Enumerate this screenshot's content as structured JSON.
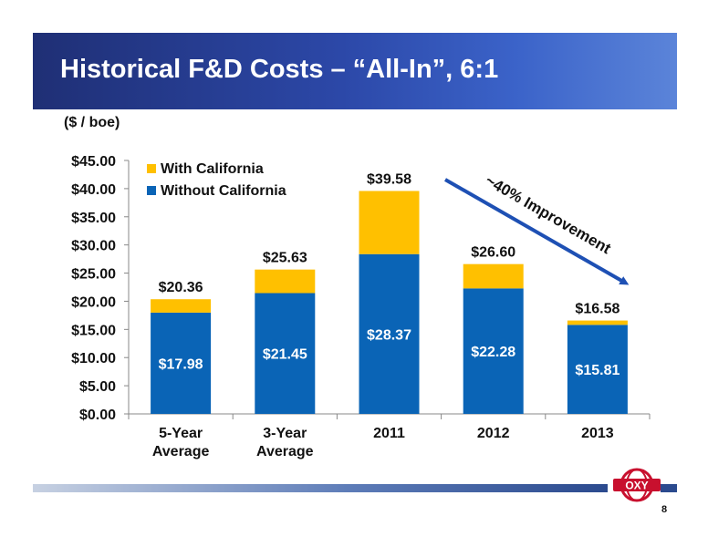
{
  "slide": {
    "title": "Historical F&D Costs – “All-In”, 6:1",
    "unit_label": "($ / boe)",
    "page_number": "8",
    "logo_text": "OXY"
  },
  "chart_data": {
    "type": "bar",
    "stacked": true,
    "categories": [
      [
        "5-Year",
        "Average"
      ],
      [
        "3-Year",
        "Average"
      ],
      [
        "2011"
      ],
      [
        "2012"
      ],
      [
        "2013"
      ]
    ],
    "series": [
      {
        "name": "Without California",
        "values": [
          17.98,
          21.45,
          28.37,
          22.28,
          15.81
        ],
        "labels": [
          "$17.98",
          "$21.45",
          "$28.37",
          "$22.28",
          "$15.81"
        ],
        "color": "#0a64b6"
      },
      {
        "name": "With California",
        "values": [
          2.38,
          4.18,
          11.21,
          4.32,
          0.77
        ],
        "color": "#ffc000"
      }
    ],
    "totals": [
      20.36,
      25.63,
      39.58,
      26.6,
      16.58
    ],
    "total_labels": [
      "$20.36",
      "$25.63",
      "$39.58",
      "$26.60",
      "$16.58"
    ],
    "ylim": [
      0,
      45
    ],
    "yticks": [
      0,
      5,
      10,
      15,
      20,
      25,
      30,
      35,
      40,
      45
    ],
    "ytick_labels": [
      "$0.00",
      "$5.00",
      "$10.00",
      "$15.00",
      "$20.00",
      "$25.00",
      "$30.00",
      "$35.00",
      "$40.00",
      "$45.00"
    ],
    "legend": {
      "placement": "top-left",
      "entries": [
        "With California",
        "Without California"
      ]
    },
    "annotation": {
      "text": "~40% Improvement",
      "color": "#1e50b4"
    },
    "grid": false
  }
}
